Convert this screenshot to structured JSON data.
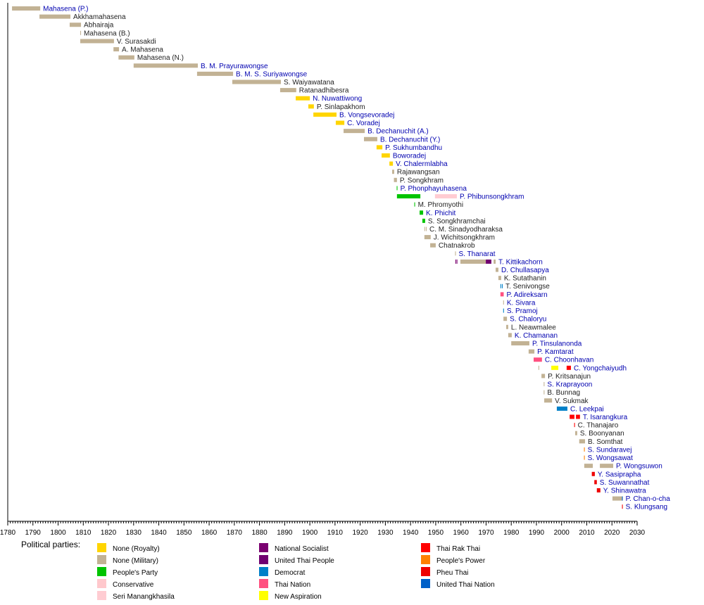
{
  "chart_data": {
    "type": "timeline",
    "xlim": [
      1780,
      2030
    ],
    "x_ticks": [
      1780,
      1790,
      1800,
      1810,
      1820,
      1830,
      1840,
      1850,
      1860,
      1870,
      1880,
      1890,
      1900,
      1910,
      1920,
      1930,
      1940,
      1950,
      1960,
      1970,
      1980,
      1990,
      2000,
      2010,
      2020,
      2030
    ],
    "legend_title": "Political parties:",
    "legend_placement": "bottom",
    "parties": {
      "royalty": {
        "label": "None (Royalty)",
        "color": "#ffd500"
      },
      "military": {
        "label": "None (Military)",
        "color": "#c2b294"
      },
      "peoples_party": {
        "label": "People's Party",
        "color": "#00c400"
      },
      "conservative": {
        "label": "Conservative",
        "color": "#ffc8cc"
      },
      "seri": {
        "label": "Seri Manangkhasila",
        "color": "#ffccd2"
      },
      "national_socialist": {
        "label": "National Socialist",
        "color": "#7a0070"
      },
      "united_thai_people": {
        "label": "United Thai People",
        "color": "#700070"
      },
      "democrat": {
        "label": "Democrat",
        "color": "#0080c8"
      },
      "thai_nation": {
        "label": "Thai Nation",
        "color": "#ff5080"
      },
      "new_aspiration": {
        "label": "New Aspiration",
        "color": "#ffff00"
      },
      "thai_rak_thai": {
        "label": "Thai Rak Thai",
        "color": "#ff0000"
      },
      "peoples_power": {
        "label": "People's Power",
        "color": "#ff8000"
      },
      "pheu_thai": {
        "label": "Pheu Thai",
        "color": "#ee0000"
      },
      "united_thai_nation": {
        "label": "United Thai Nation",
        "color": "#0060c8"
      }
    },
    "legend_columns": [
      [
        "royalty",
        "military",
        "peoples_party",
        "conservative",
        "seri"
      ],
      [
        "national_socialist",
        "united_thai_people",
        "democrat",
        "thai_nation",
        "new_aspiration"
      ],
      [
        "thai_rak_thai",
        "peoples_power",
        "pheu_thai",
        "united_thai_nation"
      ]
    ],
    "link_color": "#0000b0",
    "rows": [
      {
        "name": "Mahasena (P.)",
        "link": true,
        "spans": [
          [
            1781.7,
            1792.9,
            "military"
          ]
        ]
      },
      {
        "name": "Akkhamahasena",
        "link": false,
        "spans": [
          [
            1792.6,
            1804.9,
            "military"
          ]
        ]
      },
      {
        "name": "Abhairaja",
        "link": false,
        "spans": [
          [
            1804.6,
            1809.1,
            "military"
          ]
        ]
      },
      {
        "name": "Mahasena (B.)",
        "link": false,
        "spans": [
          [
            1808.8,
            1809.1,
            "military"
          ]
        ]
      },
      {
        "name": "V. Surasakdi",
        "link": false,
        "spans": [
          [
            1808.8,
            1822.2,
            "military"
          ]
        ]
      },
      {
        "name": "A. Mahasena",
        "link": false,
        "spans": [
          [
            1822.0,
            1824.2,
            "military"
          ]
        ]
      },
      {
        "name": "Mahasena (N.)",
        "link": false,
        "spans": [
          [
            1824.0,
            1830.3,
            "military"
          ]
        ]
      },
      {
        "name": "B. M. Prayurawongse",
        "link": true,
        "spans": [
          [
            1830.0,
            1855.5,
            "military"
          ]
        ]
      },
      {
        "name": "B. M. S. Suriyawongse",
        "link": true,
        "spans": [
          [
            1855.2,
            1869.5,
            "military"
          ]
        ]
      },
      {
        "name": "S. Waiyawatana",
        "link": false,
        "spans": [
          [
            1869.2,
            1888.5,
            "military"
          ]
        ]
      },
      {
        "name": "Ratanadhibesra",
        "link": false,
        "spans": [
          [
            1888.2,
            1894.6,
            "military"
          ]
        ]
      },
      {
        "name": "N. Nuwattiwong",
        "link": true,
        "spans": [
          [
            1894.4,
            1900.0,
            "royalty"
          ]
        ]
      },
      {
        "name": "P. Sinlapakhom",
        "link": false,
        "spans": [
          [
            1899.4,
            1901.6,
            "royalty"
          ]
        ]
      },
      {
        "name": "B. Vongsevoradej",
        "link": true,
        "spans": [
          [
            1901.4,
            1910.6,
            "royalty"
          ]
        ]
      },
      {
        "name": "C. Voradej",
        "link": true,
        "spans": [
          [
            1910.3,
            1913.7,
            "royalty"
          ]
        ]
      },
      {
        "name": "B. Dechanuchit (A.)",
        "link": true,
        "spans": [
          [
            1913.4,
            1921.8,
            "military"
          ]
        ]
      },
      {
        "name": "B. Dechanuchit (Y.)",
        "link": true,
        "spans": [
          [
            1921.5,
            1926.8,
            "military"
          ]
        ]
      },
      {
        "name": "P. Sukhumbandhu",
        "link": true,
        "spans": [
          [
            1926.5,
            1928.8,
            "royalty"
          ]
        ]
      },
      {
        "name": "Boworadej",
        "link": true,
        "spans": [
          [
            1928.5,
            1931.8,
            "royalty"
          ]
        ]
      },
      {
        "name": "V. Chalermlabha",
        "link": true,
        "spans": [
          [
            1931.6,
            1933.0,
            "royalty"
          ]
        ]
      },
      {
        "name": "Rajawangsan",
        "link": false,
        "spans": [
          [
            1932.7,
            1933.5,
            "military"
          ]
        ]
      },
      {
        "name": "P. Songkhram",
        "link": false,
        "spans": [
          [
            1933.4,
            1934.6,
            "military"
          ]
        ]
      },
      {
        "name": "P. Phonphayuhasena",
        "link": true,
        "spans": [
          [
            1934.5,
            1934.8,
            "peoples_party"
          ]
        ]
      },
      {
        "name": "P. Phibunsongkhram",
        "link": true,
        "spans": [
          [
            1934.6,
            1943.9,
            "peoples_party"
          ],
          [
            1949.7,
            1958.4,
            "seri"
          ]
        ]
      },
      {
        "name": "M. Phromyothi",
        "link": false,
        "spans": [
          [
            1941.5,
            1941.8,
            "peoples_party"
          ]
        ]
      },
      {
        "name": "K. Phichit",
        "link": true,
        "spans": [
          [
            1943.6,
            1945.0,
            "peoples_party"
          ]
        ]
      },
      {
        "name": "S. Songkhramchai",
        "link": false,
        "spans": [
          [
            1944.7,
            1945.8,
            "peoples_party"
          ]
        ]
      },
      {
        "name": "C. M. Sinadyodharaksa",
        "link": false,
        "spans": [
          [
            1945.5,
            1945.8,
            "military"
          ],
          [
            1946.1,
            1946.4,
            "military"
          ]
        ]
      },
      {
        "name": "J. Wichitsongkhram",
        "link": false,
        "spans": [
          [
            1945.5,
            1948.0,
            "military"
          ]
        ]
      },
      {
        "name": "Chatnakrob",
        "link": false,
        "spans": [
          [
            1947.8,
            1950.0,
            "military"
          ]
        ]
      },
      {
        "name": "S. Thanarat",
        "link": true,
        "spans": [
          [
            1957.7,
            1958.0,
            "military"
          ]
        ]
      },
      {
        "name": "T. Kittikachorn",
        "link": true,
        "spans": [
          [
            1957.8,
            1958.1,
            "national_socialist"
          ],
          [
            1958.3,
            1958.6,
            "national_socialist"
          ],
          [
            1959.8,
            1969.9,
            "military"
          ],
          [
            1969.9,
            1972.1,
            "united_thai_people"
          ],
          [
            1973.0,
            1973.8,
            "military"
          ]
        ]
      },
      {
        "name": "D. Chullasapya",
        "link": true,
        "spans": [
          [
            1973.8,
            1974.9,
            "military"
          ]
        ]
      },
      {
        "name": "K. Sutathanin",
        "link": false,
        "spans": [
          [
            1974.9,
            1976.0,
            "military"
          ]
        ]
      },
      {
        "name": "T. Senivongse",
        "link": false,
        "spans": [
          [
            1975.7,
            1976.0,
            "democrat"
          ],
          [
            1976.3,
            1976.6,
            "democrat"
          ]
        ]
      },
      {
        "name": "P. Adireksarn",
        "link": true,
        "spans": [
          [
            1975.7,
            1977.0,
            "thai_nation"
          ]
        ]
      },
      {
        "name": "K. Sivara",
        "link": true,
        "spans": [
          [
            1976.8,
            1977.1,
            "military"
          ]
        ]
      },
      {
        "name": "S. Pramoj",
        "link": true,
        "spans": [
          [
            1976.8,
            1977.1,
            "democrat"
          ]
        ]
      },
      {
        "name": "S. Chaloryu",
        "link": true,
        "spans": [
          [
            1976.9,
            1978.3,
            "military"
          ]
        ]
      },
      {
        "name": "L. Neawmalee",
        "link": false,
        "spans": [
          [
            1978.0,
            1978.8,
            "military"
          ]
        ]
      },
      {
        "name": "K. Chamanan",
        "link": true,
        "spans": [
          [
            1978.8,
            1980.2,
            "military"
          ]
        ]
      },
      {
        "name": "P. Tinsulanonda",
        "link": true,
        "spans": [
          [
            1980.0,
            1987.2,
            "military"
          ]
        ]
      },
      {
        "name": "P. Kamtarat",
        "link": true,
        "spans": [
          [
            1986.9,
            1989.2,
            "military"
          ]
        ]
      },
      {
        "name": "C. Choonhavan",
        "link": true,
        "spans": [
          [
            1988.9,
            1992.2,
            "thai_nation"
          ]
        ]
      },
      {
        "name": "C. Yongchaiyudh",
        "link": true,
        "spans": [
          [
            1990.8,
            1991.1,
            "military"
          ],
          [
            1995.9,
            1998.7,
            "new_aspiration"
          ],
          [
            2002.0,
            2003.7,
            "thai_rak_thai"
          ]
        ]
      },
      {
        "name": "P. Kritsanajun",
        "link": false,
        "spans": [
          [
            1992.0,
            1993.4,
            "military"
          ]
        ]
      },
      {
        "name": "S. Kraprayoon",
        "link": true,
        "spans": [
          [
            1992.9,
            1993.2,
            "military"
          ]
        ]
      },
      {
        "name": "B. Bunnag",
        "link": false,
        "spans": [
          [
            1992.9,
            1993.2,
            "military"
          ]
        ]
      },
      {
        "name": "V. Sukmak",
        "link": false,
        "spans": [
          [
            1993.1,
            1996.2,
            "military"
          ]
        ]
      },
      {
        "name": "C. Leekpai",
        "link": true,
        "spans": [
          [
            1998.1,
            2002.3,
            "democrat"
          ]
        ]
      },
      {
        "name": "T. Isarangkura",
        "link": true,
        "spans": [
          [
            2003.2,
            2005.1,
            "thai_rak_thai"
          ],
          [
            2005.7,
            2007.3,
            "thai_rak_thai"
          ]
        ]
      },
      {
        "name": "C. Thanajaro",
        "link": false,
        "spans": [
          [
            2005.0,
            2005.3,
            "thai_rak_thai"
          ]
        ]
      },
      {
        "name": "S. Boonyanan",
        "link": false,
        "spans": [
          [
            2005.4,
            2006.2,
            "military"
          ]
        ]
      },
      {
        "name": "B. Somthat",
        "link": false,
        "spans": [
          [
            2007.0,
            2009.3,
            "military"
          ]
        ]
      },
      {
        "name": "S. Sundaravej",
        "link": true,
        "spans": [
          [
            2008.9,
            2009.2,
            "peoples_power"
          ]
        ]
      },
      {
        "name": "S. Wongsawat",
        "link": true,
        "spans": [
          [
            2008.9,
            2009.2,
            "peoples_power"
          ]
        ]
      },
      {
        "name": "P. Wongsuwon",
        "link": true,
        "spans": [
          [
            2009.0,
            2012.4,
            "military"
          ],
          [
            2015.2,
            2020.5,
            "military"
          ]
        ]
      },
      {
        "name": "Y. Sasiprapha",
        "link": true,
        "spans": [
          [
            2012.0,
            2013.2,
            "pheu_thai"
          ]
        ]
      },
      {
        "name": "S. Suwannathat",
        "link": true,
        "spans": [
          [
            2013.0,
            2014.0,
            "pheu_thai"
          ]
        ]
      },
      {
        "name": "Y. Shinawatra",
        "link": true,
        "spans": [
          [
            2014.0,
            2015.4,
            "pheu_thai"
          ]
        ]
      },
      {
        "name": "P. Chan-o-cha",
        "link": true,
        "spans": [
          [
            2020.2,
            2024.0,
            "military"
          ],
          [
            2024.0,
            2024.3,
            "united_thai_nation"
          ]
        ]
      },
      {
        "name": "S. Klungsang",
        "link": true,
        "spans": [
          [
            2024.0,
            2024.3,
            "pheu_thai"
          ]
        ]
      }
    ]
  }
}
